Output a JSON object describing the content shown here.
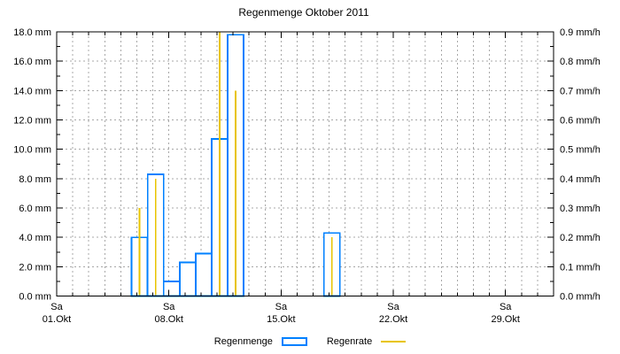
{
  "page": {
    "background": "#ffffff"
  },
  "chart_data": {
    "type": "bar",
    "title": "Regenmenge Oktober 2011",
    "x_axis": {
      "unit": "date",
      "month_shown": "Oktober 2011",
      "days_shown": 31,
      "minor_tick_every_days": 1,
      "major_ticks": [
        {
          "day": 1,
          "weekday": "Sa",
          "label": "01.Okt"
        },
        {
          "day": 8,
          "weekday": "Sa",
          "label": "08.Okt"
        },
        {
          "day": 15,
          "weekday": "Sa",
          "label": "15.Okt"
        },
        {
          "day": 22,
          "weekday": "Sa",
          "label": "22.Okt"
        },
        {
          "day": 29,
          "weekday": "Sa",
          "label": "29.Okt"
        }
      ]
    },
    "y_left_axis": {
      "unit": "mm",
      "min": 0,
      "max": 18,
      "major_step": 2,
      "minor_step": 1,
      "tick_labels": [
        "0.0 mm",
        "2.0 mm",
        "4.0 mm",
        "6.0 mm",
        "8.0 mm",
        "10.0 mm",
        "12.0 mm",
        "14.0 mm",
        "16.0 mm",
        "18.0 mm"
      ]
    },
    "y_right_axis": {
      "unit": "mm/h",
      "min": 0,
      "max": 0.9,
      "major_step": 0.1,
      "minor_step": 0.05,
      "tick_labels": [
        "0.0 mm/h",
        "0.1 mm/h",
        "0.2 mm/h",
        "0.3 mm/h",
        "0.4 mm/h",
        "0.5 mm/h",
        "0.6 mm/h",
        "0.7 mm/h",
        "0.8 mm/h",
        "0.9 mm/h"
      ]
    },
    "grid": {
      "color": "#a8a8a8",
      "style": "dashed",
      "vertical_every_days": 1,
      "horizontal_every_mm": 2
    },
    "series": [
      {
        "name": "Regenmenge",
        "axis": "left",
        "style": "open-bar",
        "color": "#0080ff",
        "fill": "#ffffff",
        "bar_width_days": 1,
        "unit": "mm",
        "points": [
          {
            "day": 6,
            "value": 4.0
          },
          {
            "day": 7,
            "value": 8.3
          },
          {
            "day": 8,
            "value": 1.0
          },
          {
            "day": 9,
            "value": 2.3
          },
          {
            "day": 10,
            "value": 2.9
          },
          {
            "day": 11,
            "value": 10.7
          },
          {
            "day": 12,
            "value": 17.8
          },
          {
            "day": 18,
            "value": 4.3
          }
        ]
      },
      {
        "name": "Regenrate",
        "axis": "right",
        "style": "impulse",
        "color": "#e8c400",
        "unit": "mm/h",
        "points": [
          {
            "day": 6,
            "value": 0.3
          },
          {
            "day": 7,
            "value": 0.4
          },
          {
            "day": 11,
            "value": 0.9
          },
          {
            "day": 12,
            "value": 0.7
          },
          {
            "day": 18,
            "value": 0.2
          }
        ]
      }
    ]
  },
  "legend": {
    "items": [
      {
        "label": "Regenmenge",
        "swatch": "open-box",
        "color": "#0080ff"
      },
      {
        "label": "Regenrate",
        "swatch": "line",
        "color": "#e8c400"
      }
    ]
  }
}
